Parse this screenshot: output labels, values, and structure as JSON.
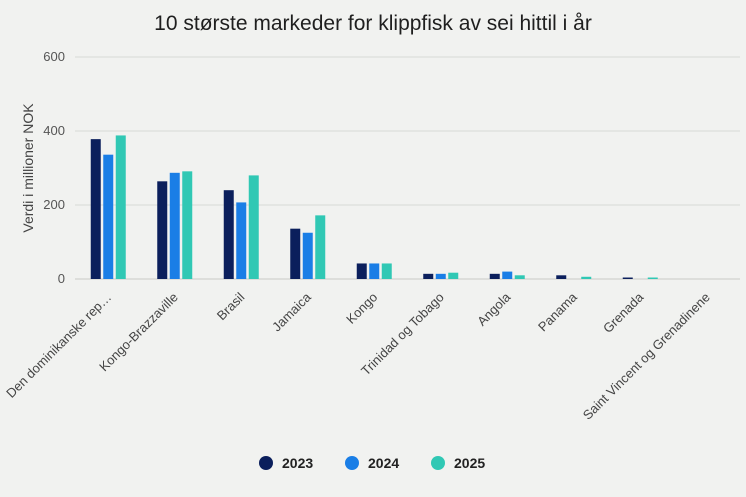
{
  "chart_data": {
    "type": "bar",
    "title": "10 største markeder for klippfisk av sei hittil i år",
    "ylabel": "Verdi i millioner NOK",
    "xlabel": "",
    "ylim": [
      0,
      600
    ],
    "yticks": [
      0,
      200,
      400,
      600
    ],
    "grid": true,
    "legend_position": "bottom",
    "categories": [
      "Den dominikanske rep…",
      "Kongo-Brazzaville",
      "Brasil",
      "Jamaica",
      "Kongo",
      "Trinidad og Tobago",
      "Angola",
      "Panama",
      "Grenada",
      "Saint Vincent og Grenadinene"
    ],
    "series": [
      {
        "name": "2023",
        "color": "#0b1f5c",
        "values": [
          378,
          264,
          240,
          136,
          42,
          14,
          14,
          10,
          4,
          0
        ]
      },
      {
        "name": "2024",
        "color": "#1a7ee6",
        "values": [
          336,
          287,
          207,
          125,
          42,
          14,
          20,
          0,
          0,
          0
        ]
      },
      {
        "name": "2025",
        "color": "#30c8b4",
        "values": [
          388,
          291,
          280,
          172,
          42,
          17,
          10,
          6,
          4,
          0
        ]
      }
    ]
  }
}
